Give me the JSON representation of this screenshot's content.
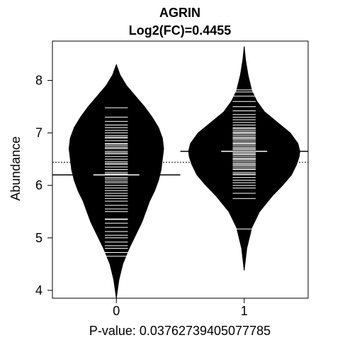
{
  "chart_data": {
    "type": "beanplot",
    "title": "AGRIN",
    "subtitle": "Log2(FC)=0.4455",
    "ylabel": "Abundance",
    "xlabel": "P-value: 0.03762739405077785",
    "categories": [
      "0",
      "1"
    ],
    "ylim": [
      3.85,
      8.75
    ],
    "yticks": [
      4,
      5,
      6,
      7,
      8
    ],
    "overall_mean": 6.44,
    "colors": {
      "bean": "#000000",
      "line": "#ffffff",
      "reference_line": "#000000"
    },
    "groups": [
      {
        "category": "0",
        "mean": 6.2,
        "range": [
          3.85,
          8.3
        ],
        "density": [
          [
            3.85,
            0
          ],
          [
            4.2,
            0.02
          ],
          [
            4.5,
            0.05
          ],
          [
            4.8,
            0.1
          ],
          [
            5.1,
            0.16
          ],
          [
            5.3,
            0.2
          ],
          [
            5.5,
            0.23
          ],
          [
            5.7,
            0.26
          ],
          [
            5.9,
            0.3
          ],
          [
            6.1,
            0.33
          ],
          [
            6.3,
            0.35
          ],
          [
            6.5,
            0.36
          ],
          [
            6.7,
            0.37
          ],
          [
            6.9,
            0.36
          ],
          [
            7.1,
            0.33
          ],
          [
            7.3,
            0.28
          ],
          [
            7.5,
            0.22
          ],
          [
            7.7,
            0.15
          ],
          [
            7.9,
            0.08
          ],
          [
            8.1,
            0.03
          ],
          [
            8.3,
            0
          ]
        ],
        "points": [
          4.65,
          4.72,
          4.8,
          4.85,
          4.92,
          5.0,
          5.05,
          5.12,
          5.2,
          5.28,
          5.35,
          5.36,
          5.5,
          5.55,
          5.62,
          5.7,
          5.75,
          5.8,
          5.85,
          5.9,
          5.95,
          6.0,
          6.05,
          6.08,
          6.12,
          6.15,
          6.2,
          6.22,
          6.25,
          6.3,
          6.35,
          6.4,
          6.42,
          6.45,
          6.5,
          6.55,
          6.6,
          6.62,
          6.65,
          6.7,
          6.72,
          6.75,
          6.78,
          6.8,
          6.85,
          6.9,
          6.92,
          6.95,
          7.0,
          7.05,
          7.1,
          7.15,
          7.22,
          7.3,
          7.48
        ]
      },
      {
        "category": "1",
        "mean": 6.65,
        "range": [
          4.38,
          8.65
        ],
        "density": [
          [
            4.38,
            0
          ],
          [
            4.8,
            0.02
          ],
          [
            5.2,
            0.06
          ],
          [
            5.5,
            0.12
          ],
          [
            5.8,
            0.22
          ],
          [
            6.0,
            0.3
          ],
          [
            6.2,
            0.37
          ],
          [
            6.4,
            0.41
          ],
          [
            6.55,
            0.43
          ],
          [
            6.65,
            0.435
          ],
          [
            6.8,
            0.42
          ],
          [
            7.0,
            0.36
          ],
          [
            7.2,
            0.26
          ],
          [
            7.4,
            0.16
          ],
          [
            7.6,
            0.1
          ],
          [
            7.8,
            0.06
          ],
          [
            8.1,
            0.03
          ],
          [
            8.4,
            0.01
          ],
          [
            8.65,
            0
          ]
        ],
        "points": [
          5.17,
          5.75,
          5.85,
          5.95,
          6.0,
          6.05,
          6.1,
          6.15,
          6.2,
          6.22,
          6.25,
          6.3,
          6.32,
          6.35,
          6.38,
          6.4,
          6.42,
          6.45,
          6.48,
          6.5,
          6.52,
          6.55,
          6.58,
          6.6,
          6.62,
          6.65,
          6.68,
          6.7,
          6.72,
          6.75,
          6.78,
          6.8,
          6.82,
          6.85,
          6.88,
          6.9,
          6.92,
          6.95,
          6.98,
          7.0,
          7.02,
          7.05,
          7.08,
          7.1,
          7.15,
          7.2,
          7.25,
          7.3,
          7.35,
          7.42,
          7.5,
          7.6,
          7.7,
          7.78,
          7.82
        ]
      }
    ]
  }
}
